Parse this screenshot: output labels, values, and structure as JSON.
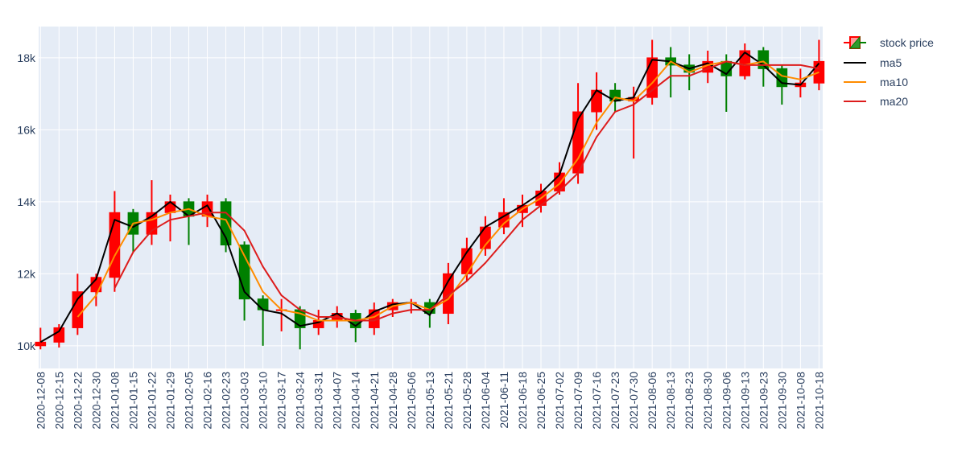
{
  "chart_data": {
    "type": "candlestick",
    "name": "stock price",
    "increasing_color": "#ff0000",
    "decreasing_color": "#008000",
    "categories": [
      "2020-12-08",
      "2020-12-15",
      "2020-12-22",
      "2020-12-30",
      "2021-01-08",
      "2021-01-15",
      "2021-01-22",
      "2021-01-29",
      "2021-02-05",
      "2021-02-16",
      "2021-02-23",
      "2021-03-03",
      "2021-03-10",
      "2021-03-17",
      "2021-03-24",
      "2021-03-31",
      "2021-04-07",
      "2021-04-14",
      "2021-04-21",
      "2021-04-28",
      "2021-05-06",
      "2021-05-13",
      "2021-05-21",
      "2021-05-28",
      "2021-06-04",
      "2021-06-11",
      "2021-06-18",
      "2021-06-25",
      "2021-07-02",
      "2021-07-09",
      "2021-07-16",
      "2021-07-23",
      "2021-07-30",
      "2021-08-06",
      "2021-08-13",
      "2021-08-23",
      "2021-08-30",
      "2021-09-06",
      "2021-09-13",
      "2021-09-23",
      "2021-09-30",
      "2021-10-08",
      "2021-10-18"
    ],
    "open": [
      10000,
      10100,
      10500,
      11500,
      11900,
      13700,
      13100,
      13700,
      14000,
      13600,
      14000,
      12800,
      11300,
      11000,
      11000,
      10500,
      10700,
      10900,
      10500,
      11000,
      11200,
      11200,
      10900,
      12000,
      12700,
      13300,
      13700,
      13900,
      14300,
      14800,
      16500,
      17100,
      16800,
      16900,
      18000,
      17800,
      17600,
      17900,
      17500,
      18200,
      17700,
      17200,
      17300
    ],
    "high": [
      10500,
      10600,
      12000,
      12000,
      14300,
      13800,
      14600,
      14200,
      14100,
      14200,
      14100,
      12900,
      11400,
      11300,
      11100,
      11000,
      11100,
      11000,
      11200,
      11300,
      11300,
      11300,
      12300,
      13000,
      13600,
      14100,
      14200,
      14500,
      15100,
      17300,
      17600,
      17300,
      17200,
      18500,
      18300,
      18100,
      18200,
      18100,
      18400,
      18300,
      17800,
      17700,
      18500
    ],
    "low": [
      9900,
      9950,
      10300,
      11100,
      11500,
      12600,
      12800,
      12900,
      12800,
      13300,
      12600,
      10700,
      10000,
      10400,
      9900,
      10300,
      10500,
      10100,
      10300,
      10800,
      10900,
      10500,
      10600,
      11800,
      12500,
      13100,
      13300,
      13700,
      14200,
      14500,
      16000,
      16500,
      15200,
      16700,
      16900,
      17100,
      17300,
      16500,
      17400,
      17200,
      16700,
      16900,
      17100
    ],
    "close": [
      10100,
      10500,
      11500,
      11900,
      13700,
      13100,
      13700,
      14000,
      13600,
      14000,
      12800,
      11300,
      11000,
      11000,
      10500,
      10700,
      10900,
      10500,
      11000,
      11200,
      11200,
      10900,
      12000,
      12700,
      13300,
      13700,
      13900,
      14300,
      14800,
      16500,
      17100,
      16800,
      16900,
      18000,
      17800,
      17600,
      17900,
      17500,
      18200,
      17700,
      17200,
      17300,
      17900
    ],
    "series": [
      {
        "type": "line",
        "name": "ma5",
        "color": "#000000",
        "values": [
          10100,
          10400,
          11300,
          11850,
          13500,
          13300,
          13600,
          14000,
          13600,
          13900,
          13000,
          11500,
          11000,
          10900,
          10550,
          10650,
          10900,
          10550,
          10950,
          11150,
          11200,
          10850,
          11800,
          12600,
          13300,
          13600,
          13900,
          14250,
          14750,
          16300,
          17100,
          16800,
          16900,
          17950,
          17900,
          17700,
          17850,
          17550,
          18150,
          17800,
          17300,
          17250,
          17850
        ]
      },
      {
        "type": "line",
        "name": "ma10",
        "color": "#ff8c00",
        "values": [
          null,
          null,
          10800,
          11400,
          12500,
          13400,
          13500,
          13700,
          13800,
          13600,
          13500,
          12500,
          11500,
          11000,
          10900,
          10700,
          10700,
          10700,
          10800,
          11100,
          11200,
          11000,
          11300,
          12000,
          12800,
          13400,
          13800,
          14100,
          14500,
          15200,
          16200,
          16900,
          16800,
          17300,
          17900,
          17600,
          17800,
          17900,
          17800,
          17900,
          17500,
          17400,
          17600
        ]
      },
      {
        "type": "line",
        "name": "ma20",
        "color": "#dd1c1c",
        "values": [
          null,
          null,
          null,
          null,
          11600,
          12600,
          13200,
          13500,
          13600,
          13700,
          13700,
          13200,
          12200,
          11400,
          11000,
          10800,
          10800,
          10700,
          10700,
          10900,
          11000,
          11000,
          11400,
          11800,
          12300,
          12900,
          13500,
          13900,
          14300,
          14800,
          15800,
          16500,
          16700,
          17100,
          17500,
          17500,
          17700,
          17900,
          17800,
          17800,
          17800,
          17800,
          17700
        ]
      }
    ],
    "ylim": [
      9370,
      18870
    ],
    "yticks": [
      {
        "value": 10000,
        "label": "10k"
      },
      {
        "value": 12000,
        "label": "12k"
      },
      {
        "value": 14000,
        "label": "14k"
      },
      {
        "value": 16000,
        "label": "16k"
      },
      {
        "value": 18000,
        "label": "18k"
      }
    ],
    "grid": true
  }
}
